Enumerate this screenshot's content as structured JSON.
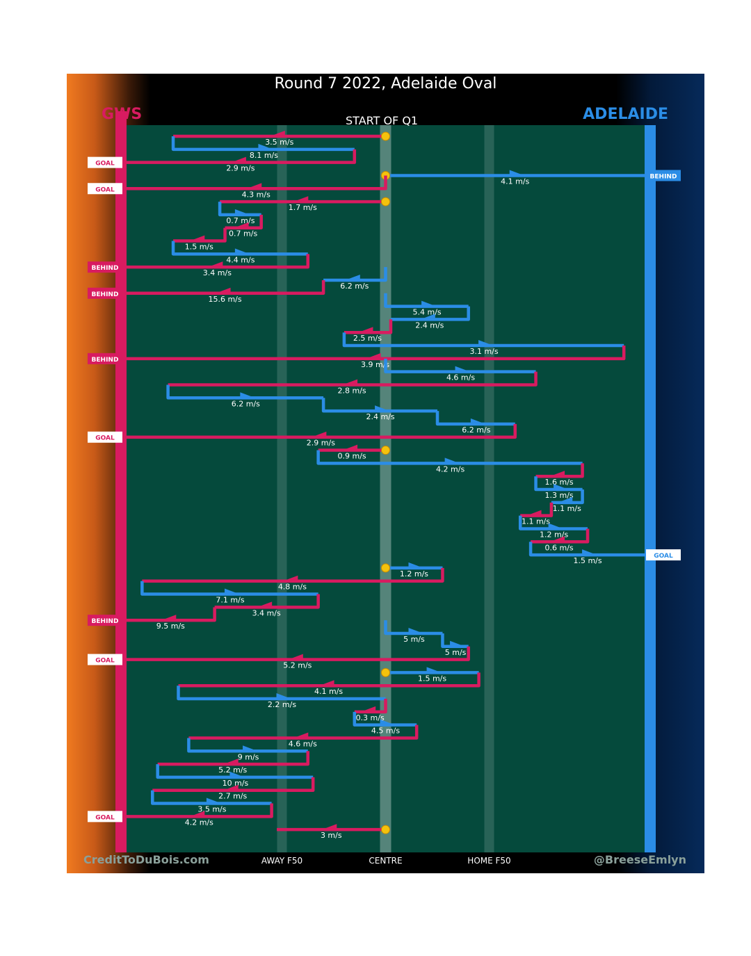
{
  "title": "Round 7 2022, Adelaide Oval",
  "subtitle": "START OF Q1",
  "teams": {
    "left": "GWS",
    "right": "ADELAIDE"
  },
  "credits": {
    "left": "CreditToDuBois.com",
    "right": "@BreeseEmlyn"
  },
  "colors": {
    "gws": "#d81b60",
    "adelaide": "#2b8de6",
    "field": "#054a3c",
    "marker": "#f4c20d"
  },
  "chart_data": {
    "type": "line",
    "x_axis": {
      "labels": [
        {
          "label": "AWAY F50",
          "x": 0.3
        },
        {
          "label": "CENTRE",
          "x": 0.5
        },
        {
          "label": "HOME F50",
          "x": 0.7
        }
      ],
      "range": [
        0,
        1
      ]
    },
    "chains": [
      {
        "team": "gws",
        "start": 0.5,
        "end": 0.09,
        "speed": "3.5 m/s"
      },
      {
        "team": "adelaide",
        "end": 0.44,
        "speed": "8.1 m/s"
      },
      {
        "team": "gws",
        "end": 0.0,
        "speed": "2.9 m/s",
        "outcome": "GOAL"
      },
      {
        "team": "adelaide",
        "start": 0.5,
        "end": 1.0,
        "speed": "4.1 m/s",
        "outcome": "BEHIND"
      },
      {
        "team": "gws",
        "end": 0.0,
        "speed": "4.3 m/s",
        "outcome": "GOAL"
      },
      {
        "team": "gws",
        "start": 0.5,
        "end": 0.18,
        "speed": "1.7 m/s"
      },
      {
        "team": "adelaide",
        "end": 0.26,
        "speed": "0.7 m/s"
      },
      {
        "team": "gws",
        "end": 0.19,
        "speed": "0.7 m/s"
      },
      {
        "team": "gws",
        "end": 0.09,
        "speed": "1.5 m/s"
      },
      {
        "team": "adelaide",
        "end": 0.35,
        "speed": "4.4 m/s"
      },
      {
        "team": "gws",
        "end": 0.0,
        "speed": "3.4 m/s",
        "outcome": "BEHIND"
      },
      {
        "team": "adelaide",
        "end": 0.38,
        "speed": "6.2 m/s"
      },
      {
        "team": "gws",
        "end": 0.0,
        "speed": "15.6 m/s",
        "outcome": "BEHIND"
      },
      {
        "team": "adelaide",
        "end": 0.66,
        "speed": "5.4 m/s"
      },
      {
        "team": "adelaide",
        "end": 0.51,
        "speed": "2.4 m/s"
      },
      {
        "team": "gws",
        "end": 0.42,
        "speed": "2.5 m/s"
      },
      {
        "team": "adelaide",
        "end": 0.96,
        "speed": "3.1 m/s"
      },
      {
        "team": "gws",
        "end": 0.0,
        "speed": "3.9 m/s",
        "outcome": "BEHIND"
      },
      {
        "team": "adelaide",
        "end": 0.79,
        "speed": "4.6 m/s"
      },
      {
        "team": "gws",
        "end": 0.08,
        "speed": "2.8 m/s"
      },
      {
        "team": "adelaide",
        "end": 0.38,
        "speed": "6.2 m/s"
      },
      {
        "team": "adelaide",
        "end": 0.6,
        "speed": "2.4 m/s"
      },
      {
        "team": "adelaide",
        "end": 0.75,
        "speed": "6.2 m/s"
      },
      {
        "team": "gws",
        "end": 0.0,
        "speed": "2.9 m/s",
        "outcome": "GOAL"
      },
      {
        "team": "gws",
        "start": 0.5,
        "end": 0.37,
        "speed": "0.9 m/s"
      },
      {
        "team": "adelaide",
        "end": 0.88,
        "speed": "4.2 m/s"
      },
      {
        "team": "gws",
        "end": 0.79,
        "speed": "1.6 m/s"
      },
      {
        "team": "adelaide",
        "end": 0.88,
        "speed": "1.3 m/s"
      },
      {
        "team": "adelaide",
        "end": 0.82,
        "speed": "1.1 m/s"
      },
      {
        "team": "gws",
        "end": 0.76,
        "speed": "1.1 m/s"
      },
      {
        "team": "adelaide",
        "end": 0.89,
        "speed": "1.2 m/s"
      },
      {
        "team": "gws",
        "end": 0.78,
        "speed": "0.6 m/s"
      },
      {
        "team": "adelaide",
        "end": 1.0,
        "speed": "1.5 m/s",
        "outcome": "GOAL"
      },
      {
        "team": "adelaide",
        "start": 0.5,
        "end": 0.61,
        "speed": "1.2 m/s"
      },
      {
        "team": "gws",
        "end": 0.03,
        "speed": "4.8 m/s"
      },
      {
        "team": "adelaide",
        "end": 0.37,
        "speed": "7.1 m/s"
      },
      {
        "team": "gws",
        "end": 0.17,
        "speed": "3.4 m/s"
      },
      {
        "team": "gws",
        "end": 0.0,
        "speed": "9.5 m/s",
        "outcome": "BEHIND"
      },
      {
        "team": "adelaide",
        "end": 0.61,
        "speed": "5 m/s"
      },
      {
        "team": "adelaide",
        "end": 0.66,
        "speed": "5 m/s"
      },
      {
        "team": "gws",
        "end": 0.0,
        "speed": "5.2 m/s",
        "outcome": "GOAL"
      },
      {
        "team": "adelaide",
        "start": 0.5,
        "end": 0.68,
        "speed": "1.5 m/s"
      },
      {
        "team": "gws",
        "end": 0.1,
        "speed": "4.1 m/s"
      },
      {
        "team": "adelaide",
        "end": 0.5,
        "speed": "2.2 m/s"
      },
      {
        "team": "gws",
        "end": 0.44,
        "speed": "0.3 m/s"
      },
      {
        "team": "adelaide",
        "end": 0.56,
        "speed": "4.5 m/s"
      },
      {
        "team": "gws",
        "end": 0.12,
        "speed": "4.6 m/s"
      },
      {
        "team": "adelaide",
        "end": 0.35,
        "speed": "9 m/s"
      },
      {
        "team": "gws",
        "end": 0.06,
        "speed": "5.2 m/s"
      },
      {
        "team": "adelaide",
        "end": 0.36,
        "speed": "10 m/s"
      },
      {
        "team": "gws",
        "end": 0.05,
        "speed": "2.7 m/s"
      },
      {
        "team": "adelaide",
        "end": 0.28,
        "speed": "3.5 m/s"
      },
      {
        "team": "gws",
        "end": 0.0,
        "speed": "4.2 m/s",
        "outcome": "GOAL"
      },
      {
        "team": "gws",
        "start": 0.5,
        "end": 0.29,
        "speed": "3 m/s"
      }
    ]
  }
}
